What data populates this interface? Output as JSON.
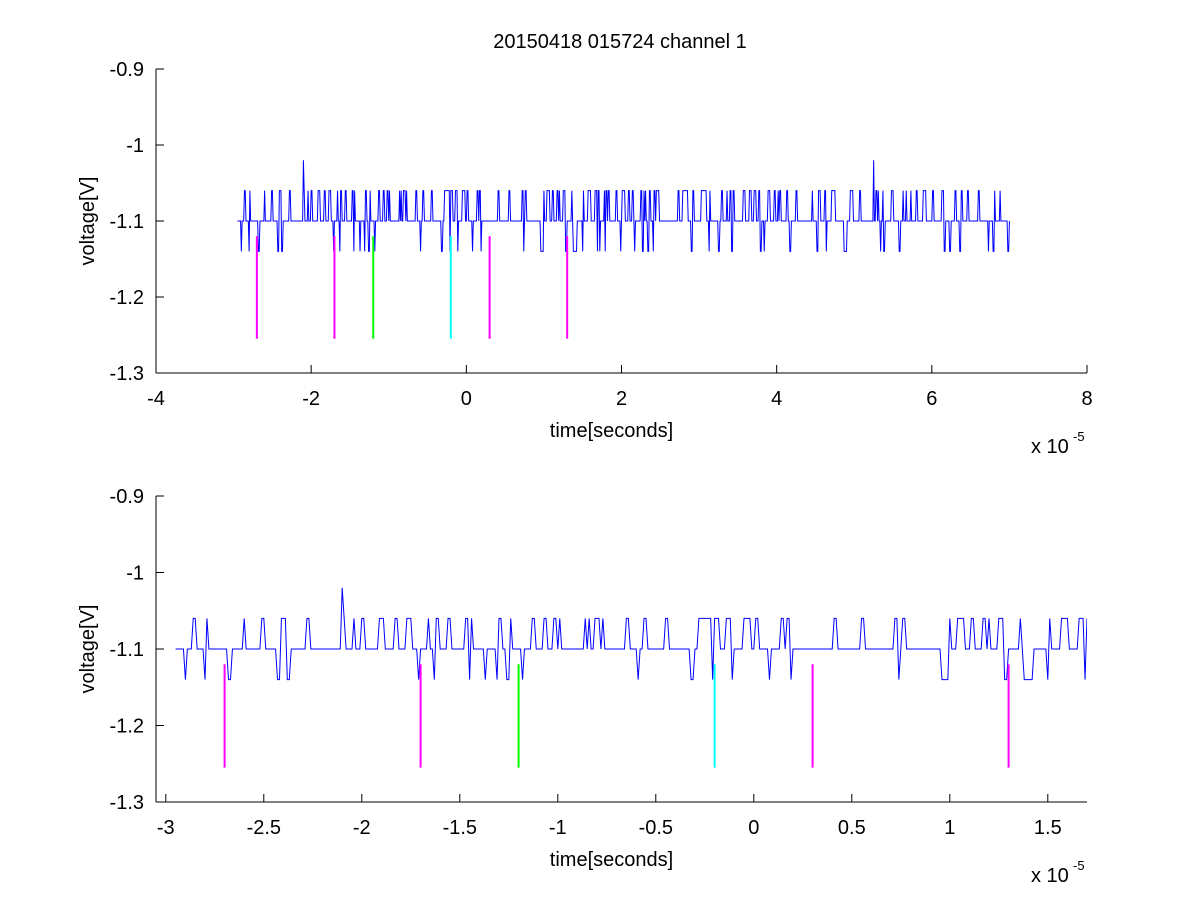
{
  "figure_title": "20150418 015724 channel 1",
  "colors": {
    "trace": "#0000ff",
    "marker_magenta": "#ff00ff",
    "marker_green": "#00ff00",
    "marker_cyan": "#00ffff",
    "axes": "#000000",
    "background": "#ffffff"
  },
  "chart_data": [
    {
      "type": "line",
      "title": "20150418 015724 channel 1",
      "xlabel": "time[seconds]",
      "ylabel": "voltage[V]",
      "x_exponent_label": "x 10",
      "x_exponent": "-5",
      "xlim": [
        -4e-05,
        8e-05
      ],
      "ylim": [
        -1.3,
        -0.9
      ],
      "x_ticks": [
        -4e-05,
        -2e-05,
        0,
        2e-05,
        4e-05,
        6e-05,
        8e-05
      ],
      "x_tick_labels": [
        "-4",
        "-2",
        "0",
        "2",
        "4",
        "6",
        "8"
      ],
      "y_ticks": [
        -0.9,
        -1.0,
        -1.1,
        -1.2,
        -1.3
      ],
      "y_tick_labels": [
        "-0.9",
        "-1",
        "-1.1",
        "-1.2",
        "-1.3"
      ],
      "grid": false,
      "series": [
        {
          "kind": "noisy_trace",
          "baseline": -1.1,
          "high": -1.06,
          "low": -1.14,
          "x_start": -2.95e-05,
          "x_end": 7e-05,
          "sample_step": 1e-07,
          "spikes": [
            {
              "x": -2.1e-05,
              "y": -1.02
            },
            {
              "x": 5.25e-05,
              "y": -1.02
            }
          ]
        }
      ],
      "markers": [
        {
          "x": -2.7e-05,
          "y_top": -1.12,
          "y_bottom": -1.255,
          "color": "magenta"
        },
        {
          "x": -1.7e-05,
          "y_top": -1.12,
          "y_bottom": -1.255,
          "color": "magenta"
        },
        {
          "x": -1.2e-05,
          "y_top": -1.12,
          "y_bottom": -1.255,
          "color": "green"
        },
        {
          "x": -2e-06,
          "y_top": -1.12,
          "y_bottom": -1.255,
          "color": "cyan"
        },
        {
          "x": 3e-06,
          "y_top": -1.12,
          "y_bottom": -1.255,
          "color": "magenta"
        },
        {
          "x": 1.3e-05,
          "y_top": -1.12,
          "y_bottom": -1.255,
          "color": "magenta"
        }
      ]
    },
    {
      "type": "line",
      "title": "",
      "xlabel": "time[seconds]",
      "ylabel": "voltage[V]",
      "x_exponent_label": "x 10",
      "x_exponent": "-5",
      "xlim": [
        -3.05e-05,
        1.7e-05
      ],
      "ylim": [
        -1.3,
        -0.9
      ],
      "x_ticks": [
        -3e-05,
        -2.5e-05,
        -2e-05,
        -1.5e-05,
        -1e-05,
        -5e-06,
        0,
        5e-06,
        1e-05,
        1.5e-05
      ],
      "x_tick_labels": [
        "-3",
        "-2.5",
        "-2",
        "-1.5",
        "-1",
        "-0.5",
        "0",
        "0.5",
        "1",
        "1.5"
      ],
      "y_ticks": [
        -0.9,
        -1.0,
        -1.1,
        -1.2,
        -1.3
      ],
      "y_tick_labels": [
        "-0.9",
        "-1",
        "-1.1",
        "-1.2",
        "-1.3"
      ],
      "grid": false,
      "series": [
        {
          "kind": "noisy_trace",
          "baseline": -1.1,
          "high": -1.06,
          "low": -1.14,
          "x_start": -2.95e-05,
          "x_end": 1.7e-05,
          "sample_step": 1e-07,
          "spikes": [
            {
              "x": -2.1e-05,
              "y": -1.02
            }
          ]
        }
      ],
      "markers": [
        {
          "x": -2.7e-05,
          "y_top": -1.12,
          "y_bottom": -1.255,
          "color": "magenta"
        },
        {
          "x": -1.7e-05,
          "y_top": -1.12,
          "y_bottom": -1.255,
          "color": "magenta"
        },
        {
          "x": -1.2e-05,
          "y_top": -1.12,
          "y_bottom": -1.255,
          "color": "green"
        },
        {
          "x": -2e-06,
          "y_top": -1.12,
          "y_bottom": -1.255,
          "color": "cyan"
        },
        {
          "x": 3e-06,
          "y_top": -1.12,
          "y_bottom": -1.255,
          "color": "magenta"
        },
        {
          "x": 1.3e-05,
          "y_top": -1.12,
          "y_bottom": -1.255,
          "color": "magenta"
        }
      ]
    }
  ]
}
